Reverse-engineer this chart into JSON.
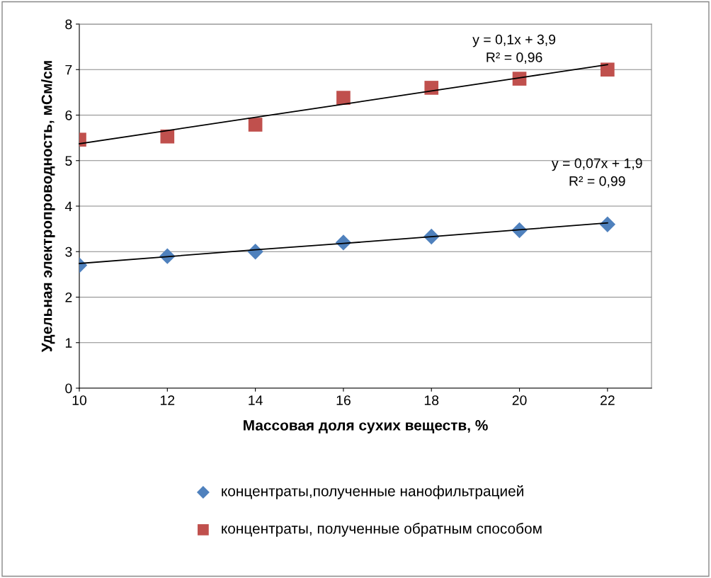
{
  "chart_data": {
    "type": "scatter",
    "xlabel": "Массовая доля сухих веществ, %",
    "ylabel": "Удельная электропроводность, мСм/см",
    "x": [
      10,
      12,
      14,
      16,
      18,
      20,
      22
    ],
    "series": [
      {
        "name": "концентраты,полученные нанофильтрацией",
        "color": "#4f81bd",
        "marker": "diamond",
        "values": [
          2.7,
          2.9,
          3.0,
          3.2,
          3.33,
          3.47,
          3.6
        ]
      },
      {
        "name": "концентраты, полученные обратным способом",
        "color": "#c0504d",
        "marker": "square",
        "values": [
          5.46,
          5.53,
          5.79,
          6.38,
          6.6,
          6.8,
          7.0
        ]
      },
      {
        "type": "line",
        "color": "#000000",
        "marker": "none",
        "values": [
          2.74,
          2.89,
          3.04,
          3.18,
          3.33,
          3.48,
          3.63
        ]
      },
      {
        "type": "line",
        "color": "#000000",
        "marker": "none",
        "values": [
          5.37,
          5.66,
          5.95,
          6.24,
          6.53,
          6.82,
          7.11
        ]
      }
    ],
    "annotations": [
      "y = 0,1x + 3,9\nR² = 0,96",
      "y = 0,07x + 1,9\nR² = 0,99"
    ],
    "xlim": [
      10,
      23
    ],
    "xticks": [
      10,
      12,
      14,
      16,
      18,
      20,
      22
    ],
    "ylim": [
      0,
      8
    ],
    "yticks": [
      0,
      1,
      2,
      3,
      4,
      5,
      6,
      7,
      8
    ],
    "grid": "y",
    "legend": "bottom"
  }
}
